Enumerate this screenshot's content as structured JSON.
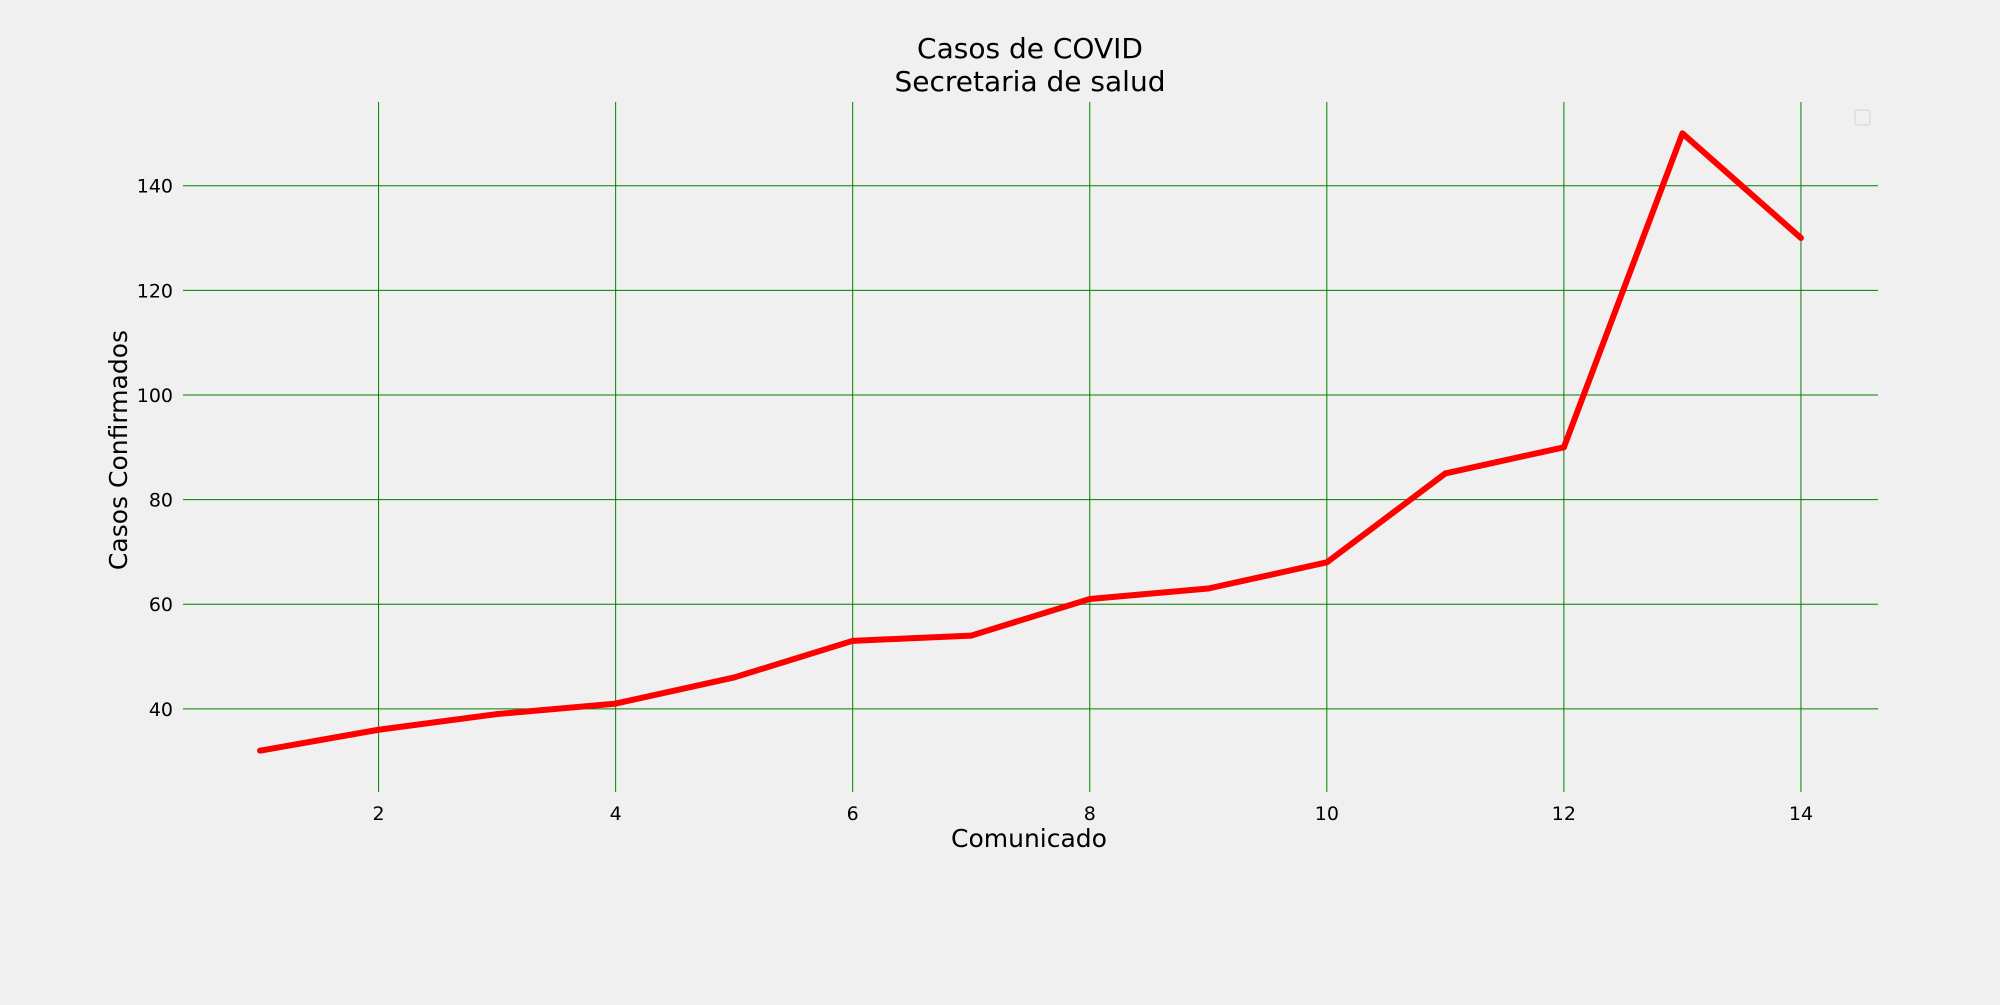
{
  "chart_data": {
    "type": "line",
    "title": "Casos de COVID",
    "subtitle": "Secretaria de salud",
    "xlabel": "Comunicado",
    "ylabel": "Casos Confirmados",
    "x": [
      1,
      2,
      3,
      4,
      5,
      6,
      7,
      8,
      9,
      10,
      11,
      12,
      13,
      14
    ],
    "series": [
      {
        "values": [
          32,
          36,
          39,
          41,
          46,
          53,
          54,
          61,
          63,
          68,
          85,
          90,
          150,
          130
        ],
        "color": "#ff0000"
      }
    ],
    "xticks": [
      2,
      4,
      6,
      8,
      10,
      12,
      14
    ],
    "yticks": [
      40,
      60,
      80,
      100,
      120,
      140
    ],
    "xlim": [
      0.35,
      14.65
    ],
    "ylim": [
      24.1,
      156.0
    ],
    "grid": true,
    "grid_color": "#008000",
    "background_color": "#f0f0f0",
    "legend": "top-right"
  }
}
